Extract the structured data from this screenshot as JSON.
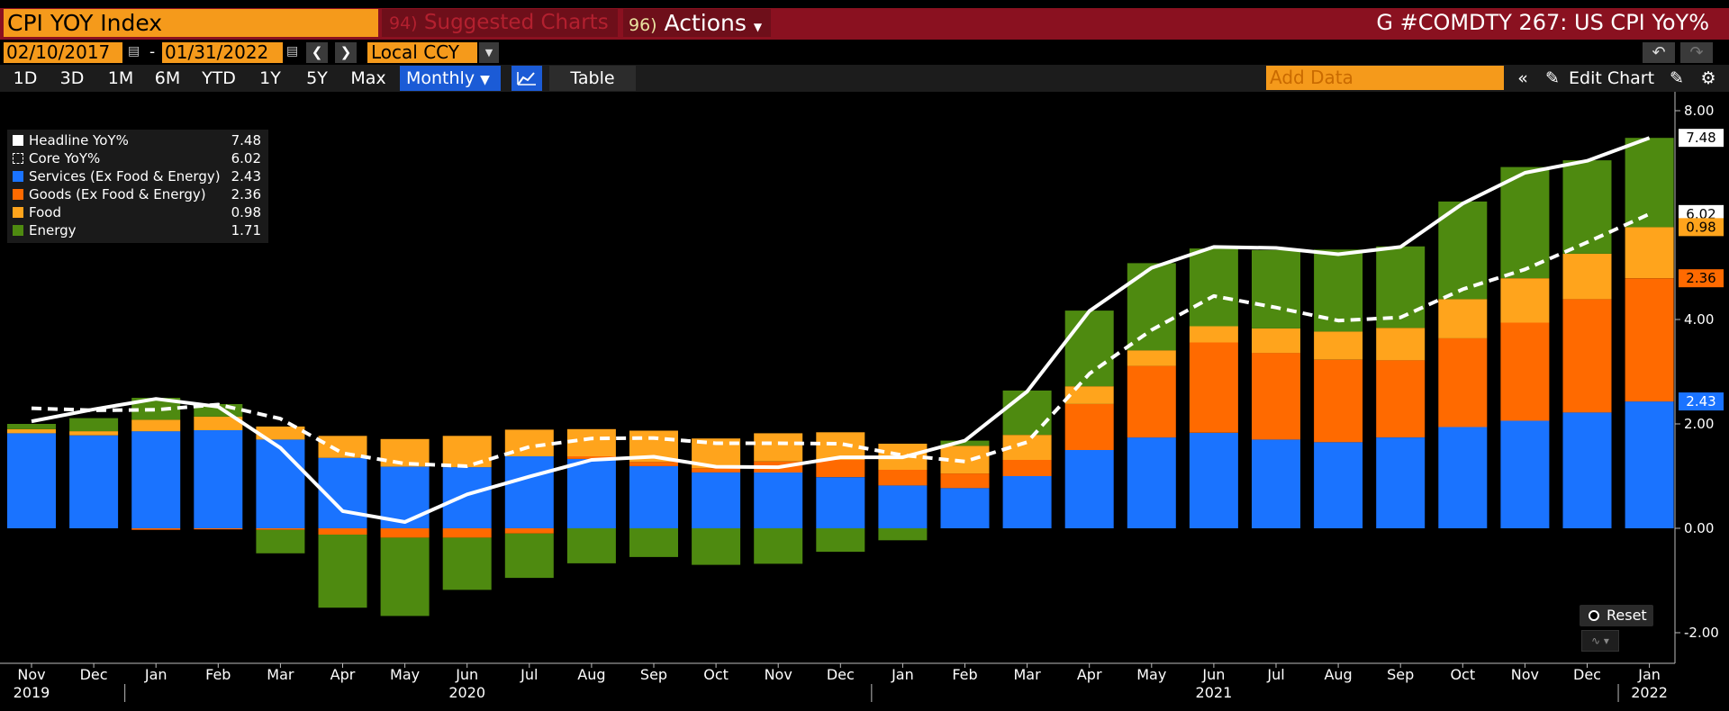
{
  "header": {
    "ticker": "CPI YOY Index",
    "suggested_num": "94)",
    "suggested_label": "Suggested Charts",
    "actions_num": "96)",
    "actions_label": "Actions",
    "window_title": "G #COMDTY 267: US CPI YoY%"
  },
  "toolbar": {
    "start_date": "02/10/2017",
    "end_date": "01/31/2022",
    "date_separator": "-",
    "currency": "Local CCY",
    "ranges": [
      "1D",
      "3D",
      "1M",
      "6M",
      "YTD",
      "1Y",
      "5Y",
      "Max"
    ],
    "frequency": "Monthly",
    "view_table": "Table",
    "add_data_placeholder": "Add Data",
    "edit_chart": "Edit Chart"
  },
  "controls": {
    "reset": "Reset"
  },
  "colors": {
    "services": "#1a73ff",
    "goods": "#ff6a00",
    "food": "#ffa41c",
    "energy": "#4e8a10",
    "headline": "#ffffff",
    "core": "#ffffff",
    "header_bar": "#8a1120",
    "accent_orange": "#f59a1b"
  },
  "legend": [
    {
      "name": "Headline YoY%",
      "value": "7.48",
      "style": "solid-white"
    },
    {
      "name": "Core YoY%",
      "value": "6.02",
      "style": "dashed-white"
    },
    {
      "name": "Services (Ex Food & Energy)",
      "value": "2.43",
      "color_key": "services"
    },
    {
      "name": "Goods (Ex Food & Energy)",
      "value": "2.36",
      "color_key": "goods"
    },
    {
      "name": "Food",
      "value": "0.98",
      "color_key": "food"
    },
    {
      "name": "Energy",
      "value": "1.71",
      "color_key": "energy"
    }
  ],
  "chart_data": {
    "type": "bar",
    "stacked": true,
    "categories": [
      "Nov",
      "Dec",
      "Jan",
      "Feb",
      "Mar",
      "Apr",
      "May",
      "Jun",
      "Jul",
      "Aug",
      "Sep",
      "Oct",
      "Nov",
      "Dec",
      "Jan",
      "Feb",
      "Mar",
      "Apr",
      "May",
      "Jun",
      "Jul",
      "Aug",
      "Sep",
      "Oct",
      "Nov",
      "Dec",
      "Jan"
    ],
    "year_labels": [
      {
        "label": "2019",
        "index": 0
      },
      {
        "label": "2020",
        "index": 7
      },
      {
        "label": "2021",
        "index": 19
      },
      {
        "label": "2022",
        "index": 26
      }
    ],
    "series": [
      {
        "name": "Services (Ex Food & Energy)",
        "color_key": "services",
        "values": [
          1.82,
          1.78,
          1.86,
          1.88,
          1.7,
          1.35,
          1.18,
          1.17,
          1.38,
          1.33,
          1.19,
          1.07,
          1.07,
          0.98,
          0.82,
          0.77,
          1.0,
          1.5,
          1.74,
          1.83,
          1.7,
          1.65,
          1.74,
          1.94,
          2.06,
          2.22,
          2.43
        ]
      },
      {
        "name": "Goods (Ex Food & Energy)",
        "color_key": "goods",
        "values": [
          0.0,
          0.0,
          -0.03,
          -0.02,
          -0.03,
          -0.12,
          -0.18,
          -0.18,
          -0.1,
          0.05,
          0.08,
          0.08,
          0.21,
          0.33,
          0.3,
          0.28,
          0.31,
          0.88,
          1.37,
          1.73,
          1.66,
          1.58,
          1.48,
          1.7,
          1.88,
          2.17,
          2.36
        ]
      },
      {
        "name": "Food",
        "color_key": "food",
        "values": [
          0.08,
          0.08,
          0.22,
          0.26,
          0.25,
          0.42,
          0.53,
          0.6,
          0.51,
          0.52,
          0.6,
          0.57,
          0.54,
          0.53,
          0.5,
          0.53,
          0.48,
          0.34,
          0.3,
          0.31,
          0.47,
          0.54,
          0.62,
          0.75,
          0.85,
          0.87,
          0.98
        ]
      },
      {
        "name": "Energy",
        "color_key": "energy",
        "values": [
          0.1,
          0.25,
          0.42,
          0.24,
          -0.45,
          -1.4,
          -1.5,
          -1.0,
          -0.85,
          -0.67,
          -0.55,
          -0.7,
          -0.68,
          -0.45,
          -0.23,
          0.1,
          0.85,
          1.45,
          1.67,
          1.49,
          1.5,
          1.57,
          1.56,
          1.87,
          2.13,
          1.79,
          1.71
        ]
      }
    ],
    "lines": [
      {
        "name": "Headline YoY%",
        "style": "solid",
        "values": [
          2.05,
          2.28,
          2.48,
          2.33,
          1.54,
          0.33,
          0.12,
          0.65,
          0.99,
          1.31,
          1.37,
          1.18,
          1.17,
          1.36,
          1.36,
          1.68,
          2.62,
          4.16,
          4.99,
          5.39,
          5.37,
          5.25,
          5.39,
          6.22,
          6.81,
          7.04,
          7.48
        ]
      },
      {
        "name": "Core YoY%",
        "style": "dashed",
        "values": [
          2.3,
          2.26,
          2.27,
          2.37,
          2.1,
          1.44,
          1.24,
          1.19,
          1.56,
          1.72,
          1.73,
          1.63,
          1.63,
          1.62,
          1.4,
          1.28,
          1.65,
          2.96,
          3.8,
          4.45,
          4.23,
          3.98,
          4.04,
          4.58,
          4.96,
          5.48,
          6.02
        ]
      }
    ],
    "y_ticks": [
      "8.00",
      "4.00",
      "2.00",
      "0.00",
      "-2.00"
    ],
    "y_tick_values": [
      8,
      4,
      2,
      0,
      -2
    ],
    "ylim": [
      -2.6,
      8.0
    ],
    "last_value_tags": [
      {
        "label": "7.48",
        "value": 7.48,
        "bg": "#ffffff",
        "fg": "#000000"
      },
      {
        "label": "6.02",
        "value": 6.02,
        "bg": "#ffffff",
        "fg": "#000000"
      },
      {
        "label": "0.98",
        "value": 5.77,
        "bg": "#ffa41c",
        "fg": "#000000"
      },
      {
        "label": "2.36",
        "value": 4.79,
        "bg": "#ff6a00",
        "fg": "#000000"
      },
      {
        "label": "2.43",
        "value": 2.43,
        "bg": "#1a73ff",
        "fg": "#ffffff"
      }
    ]
  }
}
